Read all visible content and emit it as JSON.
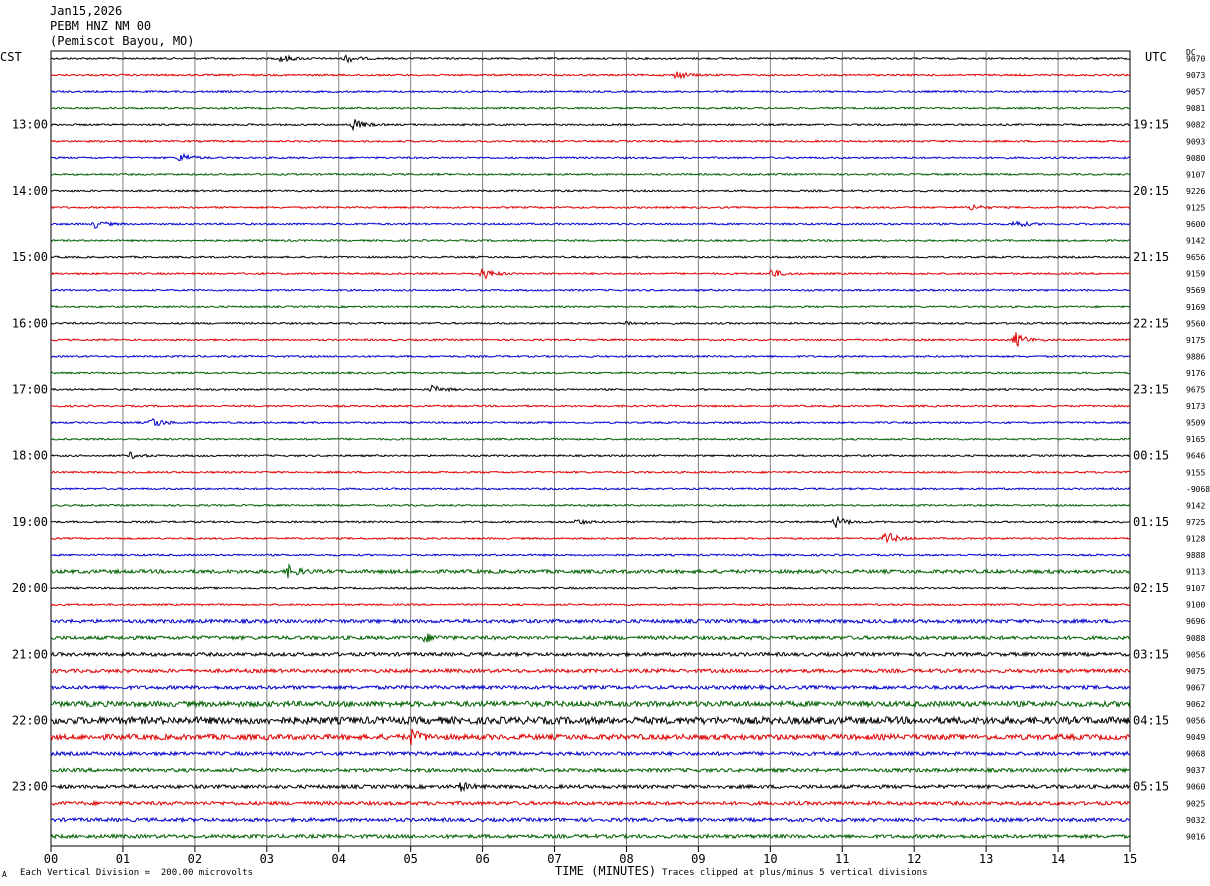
{
  "header": {
    "date": "Jan15,2026",
    "station": "PEBM HNZ NM 00",
    "location": "(Pemiscot Bayou, MO)"
  },
  "labels": {
    "left_zone": "CST",
    "right_zone": "UTC",
    "dc": "DC"
  },
  "footer": {
    "division": "Each Vertical Division =  200.00 microvolts",
    "clip_note": "Traces clipped at plus/minus 5 vertical divisions",
    "mark": "A"
  },
  "colors": {
    "trace_cycle": [
      "#000000",
      "#e00000",
      "#0000d0",
      "#006000"
    ],
    "grid": "#808080",
    "background": "#ffffff"
  },
  "chart_data": {
    "type": "line",
    "title": "",
    "xlabel": "TIME (MINUTES)",
    "ylabel": "",
    "xlim": [
      0,
      15
    ],
    "x_ticks": [
      "00",
      "01",
      "02",
      "03",
      "04",
      "05",
      "06",
      "07",
      "08",
      "09",
      "10",
      "11",
      "12",
      "13",
      "14",
      "15"
    ],
    "grid": true,
    "trace_count": 48,
    "minutes_per_trace": 15,
    "left_hour_labels": [
      "13:00",
      "14:00",
      "15:00",
      "16:00",
      "17:00",
      "18:00",
      "19:00",
      "20:00",
      "21:00",
      "22:00",
      "23:00"
    ],
    "right_hour_labels": [
      "19:15",
      "20:15",
      "21:15",
      "22:15",
      "23:15",
      "00:15",
      "01:15",
      "02:15",
      "03:15",
      "04:15",
      "05:15"
    ],
    "dc_offsets": [
      "9070",
      "9073",
      "9057",
      "9081",
      "9082",
      "9093",
      "9080",
      "9107",
      "9226",
      "9125",
      "9600",
      "9142",
      "9656",
      "9159",
      "9569",
      "9169",
      "9560",
      "9175",
      "9886",
      "9176",
      "9675",
      "9173",
      "9509",
      "9165",
      "9646",
      "9155",
      "-9068",
      "9142",
      "9725",
      "9128",
      "9888",
      "9113",
      "9107",
      "9100",
      "9696",
      "9088",
      "9056",
      "9075",
      "9067",
      "9062",
      "9056",
      "9049",
      "9068",
      "9037",
      "9060",
      "9025",
      "9032",
      "9016"
    ],
    "noise_level": [
      1,
      1,
      1,
      1,
      1,
      1,
      1,
      1,
      1,
      1,
      1,
      1,
      1,
      1,
      1,
      1,
      1,
      1,
      1,
      1,
      1,
      1,
      1,
      1,
      1,
      1,
      1,
      1,
      1,
      1,
      1,
      2,
      1,
      1,
      2,
      2,
      2,
      2,
      2,
      3,
      4,
      3,
      2,
      2,
      2,
      2,
      2,
      2
    ],
    "events": [
      {
        "trace": 0,
        "minute": 3.2,
        "amplitude": 4
      },
      {
        "trace": 0,
        "minute": 4.1,
        "amplitude": 4
      },
      {
        "trace": 1,
        "minute": 8.7,
        "amplitude": 4
      },
      {
        "trace": 4,
        "minute": 4.2,
        "amplitude": 6
      },
      {
        "trace": 6,
        "minute": 1.8,
        "amplitude": 5
      },
      {
        "trace": 9,
        "minute": 12.8,
        "amplitude": 3
      },
      {
        "trace": 10,
        "minute": 0.6,
        "amplitude": 4
      },
      {
        "trace": 10,
        "minute": 13.4,
        "amplitude": 4
      },
      {
        "trace": 13,
        "minute": 6.0,
        "amplitude": 6
      },
      {
        "trace": 13,
        "minute": 10.0,
        "amplitude": 5
      },
      {
        "trace": 16,
        "minute": 8.0,
        "amplitude": 2
      },
      {
        "trace": 17,
        "minute": 13.4,
        "amplitude": 8
      },
      {
        "trace": 20,
        "minute": 5.3,
        "amplitude": 4
      },
      {
        "trace": 22,
        "minute": 1.4,
        "amplitude": 6
      },
      {
        "trace": 24,
        "minute": 1.1,
        "amplitude": 3
      },
      {
        "trace": 28,
        "minute": 7.3,
        "amplitude": 3
      },
      {
        "trace": 28,
        "minute": 10.9,
        "amplitude": 6
      },
      {
        "trace": 29,
        "minute": 11.6,
        "amplitude": 8
      },
      {
        "trace": 31,
        "minute": 3.3,
        "amplitude": 6
      },
      {
        "trace": 35,
        "minute": 5.2,
        "amplitude": 4
      },
      {
        "trace": 39,
        "minute": 15.0,
        "amplitude": 6
      },
      {
        "trace": 41,
        "minute": 5.0,
        "amplitude": 7
      },
      {
        "trace": 44,
        "minute": 5.7,
        "amplitude": 4
      }
    ]
  }
}
